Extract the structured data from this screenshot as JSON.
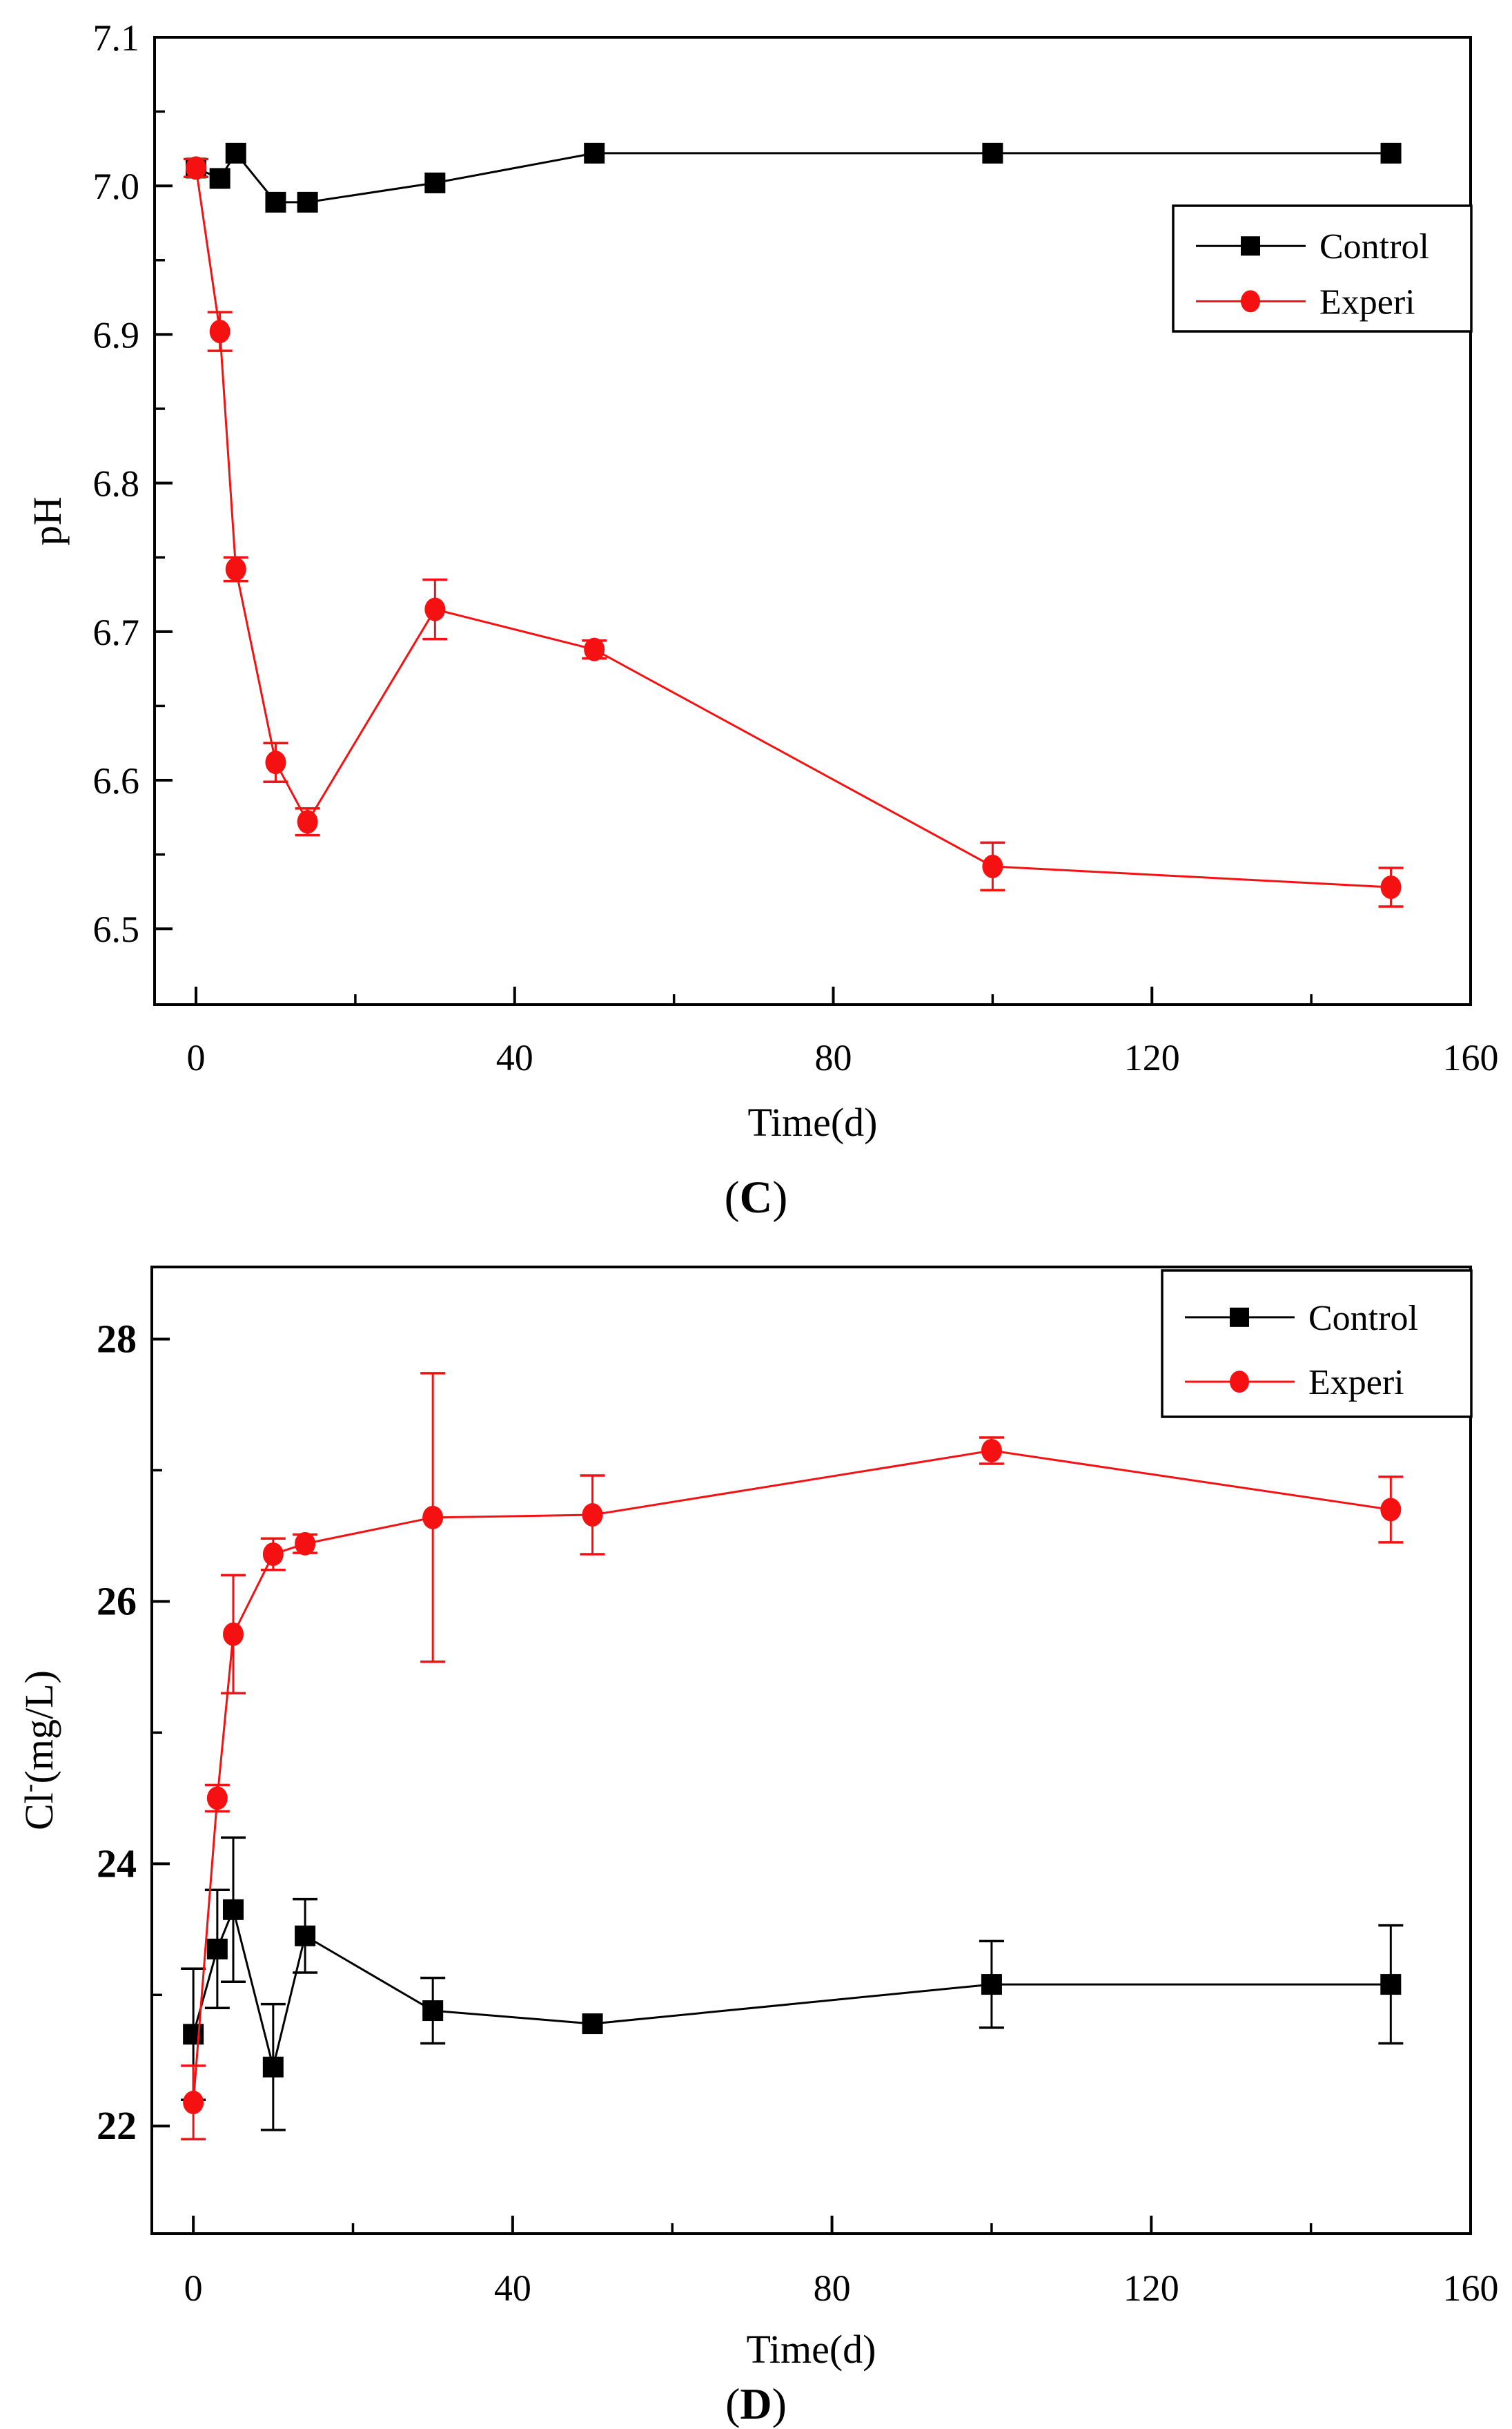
{
  "page": {
    "background": "#ffffff"
  },
  "colors": {
    "axis": "#000000",
    "control": "#000000",
    "experi": "#f51111"
  },
  "chart_data": [
    {
      "id": "C",
      "type": "line",
      "caption": "(C)",
      "caption_prefix": "(",
      "caption_letter": "C",
      "caption_suffix": ")",
      "xlabel": "Time(d)",
      "ylabel": "pH",
      "ylabel_parts": [
        {
          "t": "pH",
          "sup": false
        }
      ],
      "xlim": [
        -5.2,
        160
      ],
      "ylim": [
        6.449,
        7.1
      ],
      "xticks_major": [
        0,
        40,
        80,
        120,
        160
      ],
      "xtick_labels": [
        "0",
        "40",
        "80",
        "120",
        "160"
      ],
      "xticks_minor": [
        20,
        60,
        100,
        140
      ],
      "yticks_major": [
        6.5,
        6.6,
        6.7,
        6.8,
        6.9,
        7.0,
        7.1
      ],
      "ytick_labels": [
        "6.5",
        "6.6",
        "6.7",
        "6.8",
        "6.9",
        "7.0",
        "7.1"
      ],
      "yticks_minor": [
        6.55,
        6.65,
        6.75,
        6.85,
        6.95,
        7.05
      ],
      "grid": false,
      "x": [
        0,
        3,
        5,
        10,
        14,
        30,
        50,
        100,
        150
      ],
      "series": [
        {
          "name": "Control",
          "color": "#000000",
          "marker": "square",
          "values": [
            7.012,
            7.005,
            7.022,
            6.989,
            6.989,
            7.002,
            7.022,
            7.022,
            7.022
          ],
          "errors": [
            0,
            0,
            0,
            0,
            0,
            0,
            0,
            0,
            0
          ]
        },
        {
          "name": "Experi",
          "color": "#f51111",
          "marker": "circle",
          "values": [
            7.012,
            6.902,
            6.742,
            6.612,
            6.572,
            6.715,
            6.688,
            6.542,
            6.528
          ],
          "errors": [
            0.006,
            0.013,
            0.008,
            0.013,
            0.009,
            0.02,
            0.006,
            0.016,
            0.013
          ]
        }
      ],
      "legend": {
        "position": "right-upper-inside",
        "entries": [
          "Control",
          "Experi"
        ]
      }
    },
    {
      "id": "D",
      "type": "line",
      "caption": "(D)",
      "caption_prefix": "(",
      "caption_letter": "D",
      "caption_suffix": ")",
      "xlabel": "Time(d)",
      "ylabel": "Cl⁻(mg/L)",
      "ylabel_parts": [
        {
          "t": "Cl",
          "sup": false
        },
        {
          "t": "-",
          "sup": true
        },
        {
          "t": "(mg/L)",
          "sup": false
        }
      ],
      "xlim": [
        -5.2,
        160
      ],
      "ylim": [
        21.18,
        28.55
      ],
      "xticks_major": [
        0,
        40,
        80,
        120,
        160
      ],
      "xtick_labels": [
        "0",
        "40",
        "80",
        "120",
        "160"
      ],
      "xticks_minor": [
        20,
        60,
        100,
        140
      ],
      "yticks_major": [
        22,
        24,
        26,
        28
      ],
      "ytick_labels": [
        "22",
        "24",
        "26",
        "28"
      ],
      "yticks_minor": [
        23,
        25,
        27
      ],
      "grid": false,
      "x": [
        0,
        3,
        5,
        10,
        14,
        30,
        50,
        100,
        150
      ],
      "series": [
        {
          "name": "Control",
          "color": "#000000",
          "marker": "square",
          "values": [
            22.7,
            23.35,
            23.65,
            22.45,
            23.45,
            22.88,
            22.78,
            23.08,
            23.08
          ],
          "errors": [
            0.5,
            0.45,
            0.55,
            0.48,
            0.28,
            0.25,
            0,
            0.33,
            0.45
          ]
        },
        {
          "name": "Experi",
          "color": "#f51111",
          "marker": "circle",
          "values": [
            22.18,
            24.5,
            25.75,
            26.36,
            26.44,
            26.64,
            26.66,
            27.15,
            26.7
          ],
          "errors": [
            0.28,
            0.1,
            0.45,
            0.12,
            0.07,
            1.1,
            0.3,
            0.1,
            0.25
          ]
        }
      ],
      "legend": {
        "position": "top-right-inside",
        "entries": [
          "Control",
          "Experi"
        ]
      }
    }
  ]
}
